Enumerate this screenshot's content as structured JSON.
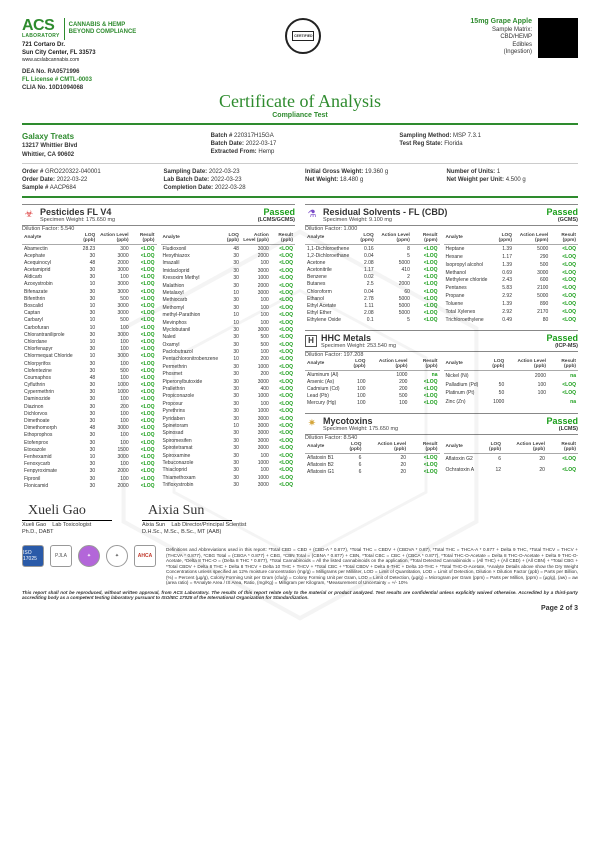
{
  "header": {
    "logo": "ACS",
    "logo_sub": "LABORATORY",
    "tagline1": "CANNABIS & HEMP",
    "tagline2": "BEYOND COMPLIANCE",
    "address1": "721 Cortaro Dr.",
    "address2": "Sun City Center, FL 33573",
    "website": "www.acslabcannabis.com",
    "seal_text": "CERTIFIED",
    "sample": {
      "name": "15mg Grape Apple",
      "matrix_label": "Sample Matrix:",
      "matrix": "CBD/HEMP",
      "category": "Edibles",
      "intake": "(Ingestion)"
    },
    "licenses": {
      "dea_lbl": "DEA No.",
      "dea": "RA0571996",
      "fl_lbl": "FL License #",
      "fl": "CMTL-0003",
      "clia_lbl": "CLIA No.",
      "clia": "10D1094068"
    },
    "title": "Certificate of Analysis",
    "subtitle": "Compliance Test"
  },
  "client": {
    "name": "Galaxy Treats",
    "addr1": "13217 Whittier Blvd",
    "addr2": "Whittier, CA 90602"
  },
  "batch": {
    "batch_lbl": "Batch #",
    "batch": "220317H15GA",
    "bdate_lbl": "Batch Date:",
    "bdate": "2022-03-17",
    "extr_lbl": "Extracted From:",
    "extr": "Hemp",
    "method_lbl": "Sampling Method:",
    "method": "MSP 7.3.1",
    "state_lbl": "Test Reg State:",
    "state": "Florida"
  },
  "order": {
    "ord_lbl": "Order #",
    "ord": "GRO220322-040001",
    "odate_lbl": "Order Date:",
    "odate": "2022-03-22",
    "samp_lbl": "Sample #",
    "samp": "AACP684",
    "sdate_lbl": "Sampling Date:",
    "sdate": "2022-03-23",
    "lbdate_lbl": "Lab Batch Date:",
    "lbdate": "2022-03-23",
    "cdate_lbl": "Completion Date:",
    "cdate": "2022-03-28",
    "igw_lbl": "Initial Gross Weight:",
    "igw": "19.360 g",
    "nw_lbl": "Net Weight:",
    "nw": "18.480 g",
    "units_lbl": "Number of Units:",
    "units": "1",
    "nwpu_lbl": "Net Weight per Unit:",
    "nwpu": "4.500 g"
  },
  "panels": {
    "pesticides": {
      "icon": "☣",
      "icon_color": "#d44",
      "title": "Pesticides FL V4",
      "spec": "Specimen Weight: 175.650 mg",
      "dil": "Dilution Factor: 5.540",
      "status": "Passed",
      "method": "(LCMS/GCMS)",
      "cols": [
        "Analyte",
        "LOQ (ppb)",
        "Action Level (ppb)",
        "Result (ppb)"
      ],
      "rowsA": [
        [
          "Abamectin",
          "28.23",
          "300",
          "<LOQ"
        ],
        [
          "Acephate",
          "30",
          "3000",
          "<LOQ"
        ],
        [
          "Acequinocyl",
          "48",
          "2000",
          "<LOQ"
        ],
        [
          "Acetamiprid",
          "30",
          "3000",
          "<LOQ"
        ],
        [
          "Aldicarb",
          "30",
          "100",
          "<LOQ"
        ],
        [
          "Azoxystrobin",
          "10",
          "3000",
          "<LOQ"
        ],
        [
          "Bifenazate",
          "30",
          "3000",
          "<LOQ"
        ],
        [
          "Bifenthrin",
          "30",
          "500",
          "<LOQ"
        ],
        [
          "Boscalid",
          "10",
          "3000",
          "<LOQ"
        ],
        [
          "Captan",
          "30",
          "3000",
          "<LOQ"
        ],
        [
          "Carbaryl",
          "10",
          "500",
          "<LOQ"
        ],
        [
          "Carbofuran",
          "10",
          "100",
          "<LOQ"
        ],
        [
          "Chlorantraniliprole",
          "30",
          "3000",
          "<LOQ"
        ],
        [
          "Chlordane",
          "10",
          "100",
          "<LOQ"
        ],
        [
          "Chlorfenapyr",
          "30",
          "100",
          "<LOQ"
        ],
        [
          "Chlormequat Chloride",
          "10",
          "3000",
          "<LOQ"
        ],
        [
          "Chlorpyrifos",
          "30",
          "100",
          "<LOQ"
        ],
        [
          "Clofentezine",
          "30",
          "500",
          "<LOQ"
        ],
        [
          "Coumaphos",
          "48",
          "100",
          "<LOQ"
        ],
        [
          "Cyfluthrin",
          "30",
          "1000",
          "<LOQ"
        ],
        [
          "Cypermethrin",
          "30",
          "1000",
          "<LOQ"
        ],
        [
          "Daminozide",
          "30",
          "100",
          "<LOQ"
        ],
        [
          "Diazinon",
          "30",
          "200",
          "<LOQ"
        ],
        [
          "Dichlorvos",
          "30",
          "100",
          "<LOQ"
        ],
        [
          "Dimethoate",
          "30",
          "100",
          "<LOQ"
        ],
        [
          "Dimethomorph",
          "48",
          "3000",
          "<LOQ"
        ],
        [
          "Ethoprophos",
          "30",
          "100",
          "<LOQ"
        ],
        [
          "Etofenprox",
          "30",
          "100",
          "<LOQ"
        ],
        [
          "Etoxazole",
          "30",
          "1500",
          "<LOQ"
        ],
        [
          "Fenhexamid",
          "10",
          "3000",
          "<LOQ"
        ],
        [
          "Fenoxycarb",
          "30",
          "100",
          "<LOQ"
        ],
        [
          "Fenpyroximate",
          "30",
          "2000",
          "<LOQ"
        ],
        [
          "Fipronil",
          "30",
          "100",
          "<LOQ"
        ],
        [
          "Flonicamid",
          "30",
          "2000",
          "<LOQ"
        ]
      ],
      "rowsB": [
        [
          "Fludioxonil",
          "48",
          "3000",
          "<LOQ"
        ],
        [
          "Hexythiazox",
          "30",
          "2000",
          "<LOQ"
        ],
        [
          "Imazalil",
          "30",
          "100",
          "<LOQ"
        ],
        [
          "Imidacloprid",
          "30",
          "3000",
          "<LOQ"
        ],
        [
          "Kresoxim Methyl",
          "30",
          "1000",
          "<LOQ"
        ],
        [
          "Malathion",
          "30",
          "2000",
          "<LOQ"
        ],
        [
          "Metalaxyl",
          "10",
          "3000",
          "<LOQ"
        ],
        [
          "Methiocarb",
          "30",
          "100",
          "<LOQ"
        ],
        [
          "Methomyl",
          "30",
          "100",
          "<LOQ"
        ],
        [
          "methyl-Parathion",
          "10",
          "100",
          "<LOQ"
        ],
        [
          "Mevinphos",
          "10",
          "100",
          "<LOQ"
        ],
        [
          "Myclobutanil",
          "30",
          "3000",
          "<LOQ"
        ],
        [
          "Naled",
          "30",
          "500",
          "<LOQ"
        ],
        [
          "Oxamyl",
          "30",
          "500",
          "<LOQ"
        ],
        [
          "Paclobutrazol",
          "30",
          "100",
          "<LOQ"
        ],
        [
          "Pentachloronitrobenzene",
          "10",
          "200",
          "<LOQ"
        ],
        [
          "Permethrin",
          "30",
          "1000",
          "<LOQ"
        ],
        [
          "Phosmet",
          "30",
          "200",
          "<LOQ"
        ],
        [
          "Piperonylbutoxide",
          "30",
          "3000",
          "<LOQ"
        ],
        [
          "Prallethrin",
          "30",
          "400",
          "<LOQ"
        ],
        [
          "Propiconazole",
          "30",
          "1000",
          "<LOQ"
        ],
        [
          "Propoxur",
          "30",
          "100",
          "<LOQ"
        ],
        [
          "Pyrethrins",
          "30",
          "1000",
          "<LOQ"
        ],
        [
          "Pyridaben",
          "30",
          "3000",
          "<LOQ"
        ],
        [
          "Spinetoram",
          "10",
          "3000",
          "<LOQ"
        ],
        [
          "Spinosad",
          "30",
          "3000",
          "<LOQ"
        ],
        [
          "Spiromesifen",
          "30",
          "3000",
          "<LOQ"
        ],
        [
          "Spirotetramat",
          "30",
          "3000",
          "<LOQ"
        ],
        [
          "Spiroxamine",
          "30",
          "100",
          "<LOQ"
        ],
        [
          "Tebuconazole",
          "30",
          "1000",
          "<LOQ"
        ],
        [
          "Thiacloprid",
          "30",
          "100",
          "<LOQ"
        ],
        [
          "Thiamethoxam",
          "30",
          "1000",
          "<LOQ"
        ],
        [
          "Trifloxystrobin",
          "30",
          "3000",
          "<LOQ"
        ]
      ]
    },
    "solvents": {
      "icon": "⚗",
      "icon_color": "#7a4bc9",
      "title": "Residual Solvents - FL (CBD)",
      "spec": "Specimen Weight: 9.100 mg",
      "dil": "Dilution Factor: 1.000",
      "status": "Passed",
      "method": "(GCMS)",
      "cols": [
        "Analyte",
        "LOQ (ppm)",
        "Action Level (ppm)",
        "Result (ppm)"
      ],
      "rowsA": [
        [
          "1,1-Dichloroethene",
          "0.16",
          "8",
          "<LOQ"
        ],
        [
          "1,2-Dichloroethane",
          "0.04",
          "5",
          "<LOQ"
        ],
        [
          "Acetone",
          "2.08",
          "5000",
          "<LOQ"
        ],
        [
          "Acetonitrile",
          "1.17",
          "410",
          "<LOQ"
        ],
        [
          "Benzene",
          "0.02",
          "2",
          "<LOQ"
        ],
        [
          "Butanes",
          "2.5",
          "2000",
          "<LOQ"
        ],
        [
          "Chloroform",
          "0.04",
          "60",
          "<LOQ"
        ],
        [
          "Ethanol",
          "2.78",
          "5000",
          "<LOQ"
        ],
        [
          "Ethyl Acetate",
          "1.11",
          "5000",
          "<LOQ"
        ],
        [
          "Ethyl Ether",
          "2.08",
          "5000",
          "<LOQ"
        ],
        [
          "Ethylene Oxide",
          "0.1",
          "5",
          "<LOQ"
        ]
      ],
      "rowsB": [
        [
          "Heptane",
          "1.39",
          "5000",
          "<LOQ"
        ],
        [
          "Hexane",
          "1.17",
          "290",
          "<LOQ"
        ],
        [
          "Isopropyl alcohol",
          "1.39",
          "500",
          "<LOQ"
        ],
        [
          "Methanol",
          "0.69",
          "3000",
          "<LOQ"
        ],
        [
          "Methylene chloride",
          "2.43",
          "600",
          "<LOQ"
        ],
        [
          "Pentanes",
          "5.83",
          "2100",
          "<LOQ"
        ],
        [
          "Propane",
          "2.92",
          "5000",
          "<LOQ"
        ],
        [
          "Toluene",
          "1.39",
          "890",
          "<LOQ"
        ],
        [
          "Total Xylenes",
          "2.92",
          "2170",
          "<LOQ"
        ],
        [
          "Trichloroethylene",
          "0.49",
          "80",
          "<LOQ"
        ]
      ]
    },
    "metals": {
      "icon": "H",
      "icon_color": "#555",
      "title": "HHC Metals",
      "spec": "Specimen Weight: 253.540 mg",
      "dil": "Dilution Factor: 197.208",
      "status": "Passed",
      "method": "(ICP-MS)",
      "cols": [
        "Analyte",
        "LOQ (ppb)",
        "Action Level (ppb)",
        "Result (ppb)"
      ],
      "rowsA": [
        [
          "Aluminum (Al)",
          "",
          "1000",
          "na"
        ],
        [
          "Arsenic (As)",
          "100",
          "200",
          "<LOQ"
        ],
        [
          "Cadmium (Cd)",
          "100",
          "200",
          "<LOQ"
        ],
        [
          "Lead (Pb)",
          "100",
          "500",
          "<LOQ"
        ],
        [
          "Mercury (Hg)",
          "100",
          "100",
          "<LOQ"
        ]
      ],
      "rowsB": [
        [
          "Nickel (Ni)",
          "",
          "2000",
          "na"
        ],
        [
          "Palladium (Pd)",
          "50",
          "100",
          "<LOQ"
        ],
        [
          "Platinum (Pt)",
          "50",
          "100",
          "<LOQ"
        ],
        [
          "Zinc (Zn)",
          "1000",
          "",
          "na"
        ]
      ]
    },
    "myco": {
      "icon": "✷",
      "icon_color": "#d4a53a",
      "title": "Mycotoxins",
      "spec": "Specimen Weight: 175.650 mg",
      "dil": "Dilution Factor: 8.540",
      "status": "Passed",
      "method": "(LCMS)",
      "cols": [
        "Analyte",
        "LOQ (ppb)",
        "Action Level (ppb)",
        "Result (ppb)"
      ],
      "rowsA": [
        [
          "Aflatoxin B1",
          "6",
          "20",
          "<LOQ"
        ],
        [
          "Aflatoxin B2",
          "6",
          "20",
          "<LOQ"
        ],
        [
          "Aflatoxin G1",
          "6",
          "20",
          "<LOQ"
        ]
      ],
      "rowsB": [
        [
          "Aflatoxin G2",
          "6",
          "20",
          "<LOQ"
        ],
        [
          "Ochratoxin A",
          "12",
          "20",
          "<LOQ"
        ]
      ]
    }
  },
  "sigs": {
    "s1_sig": "Xueli Gao",
    "s1_name": "Xueli Gao",
    "s1_title": "Lab Toxicologist",
    "s1_cred": "Ph.D., DABT",
    "s2_sig": "Aixia Sun",
    "s2_name": "Aixia Sun",
    "s2_title": "Lab Director/Principal Scientist",
    "s2_cred": "D.H.Sc., M.Sc., B.Sc., MT (AAB)"
  },
  "fineprint": "Definitions and Abbreviations used in this report: *Total CBD = CBD + (CBD-A * 0.877), *Total THC = CBDV + (CBDVA * 0.87), *Total THC = THCA-A * 0.877 + Delta 9 THC, *Total THCV = THCV + (THCVA * 0.877), *CBG Total = (CBGA * 0.877) + CBG, *CBN Total = (CBNA * 0.877) + CBN, *Total CBC = CBC + (CBCA * 0.877), *Total THC-O-Acetate = Delta 8 THC-O-Acetate + Delta 9 THC-O-Acetate, *Delta 8 THC-O = (Delta 8 THC * 0.877), *Total Cannabinoids = All the listed cannabinoids on the application, *Total Detected Cannabinoids = (All THC) + (All CBD) + (All CBN) + *Total CBG + *Total CBDV + Delta 8 THC + Delta 8 THCV + Delta 10 THC + THCV + *Total CBC + *Total CBDV + Delta 8-THC + Delta 10-THC + *Total THC-O-Acetate, *Analyte Details above show the Dry Weight Concentrations unless specified as 12% moisture concentration (mg/g) = Milligrams per Milliliter, LOD = Limit of Quantitation, LOD = Limit of Detection, Dilution × Dilution Factor (ppb) = Parts per Billion, (%) = Percent (µg/g), Colony Forming Unit per Gram (cfu/g) = Colony Forming Unit per Gram, LOD = Limit of Detection, (µg/g) = Microgram per Gram (ppm) = Parts per Million, (ppm) = (µg/g), (aw) = aw (area ratio) = #Analyte Area / IS Area, Ratio, (mg/Kg) = Milligram per Kilogram, *Measurement of Uncertainty = +/- 10%",
  "disclaimer": "This report shall not be reproduced, without written approval, from ACS Laboratory. The results of this report relate only to the material or product analyzed. Test results are confidential unless explicitly waived otherwise. Accredited by a third-party accrediting body as a competent testing laboratory pursuant to ISO/IEC 17025 of the International Organization for Standardization.",
  "badges": [
    "ISO 17025",
    "PJLA",
    "✦",
    "✦",
    "AHCA"
  ],
  "pageno": "Page 2 of 3"
}
